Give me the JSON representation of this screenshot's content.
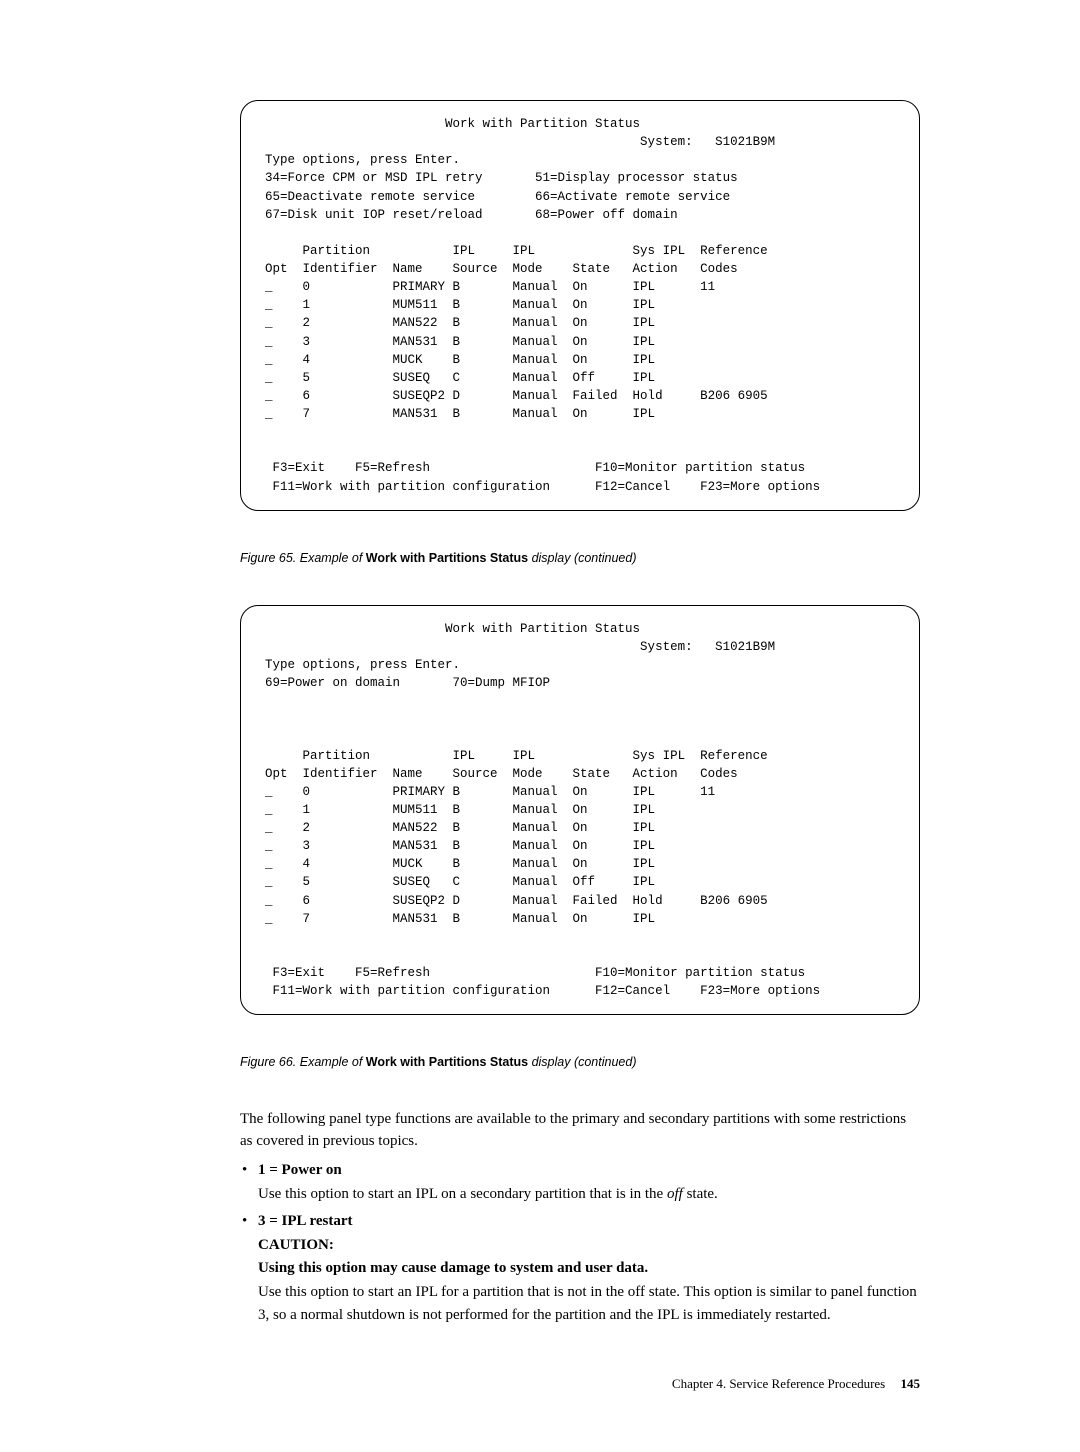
{
  "terminal_common": {
    "title": "Work with Partition Status",
    "system_label": "System:",
    "system_name": "S1021B9M",
    "type_options": "Type options, press Enter.",
    "cols": {
      "opt": "Opt",
      "partition_h1": "Partition",
      "identifier": "Identifier",
      "name": "Name",
      "ipl_h1": "IPL",
      "source": "Source",
      "ipl_h2": "IPL",
      "mode": "Mode",
      "state": "State",
      "sys_ipl": "Sys IPL",
      "action": "Action",
      "reference": "Reference",
      "codes": "Codes"
    },
    "rows": [
      {
        "opt": "_",
        "id": "0",
        "name": "PRIMARY",
        "src": "B",
        "mode": "Manual",
        "state": "On",
        "action": "IPL",
        "ref": "11"
      },
      {
        "opt": "_",
        "id": "1",
        "name": "MUM511",
        "src": "B",
        "mode": "Manual",
        "state": "On",
        "action": "IPL",
        "ref": ""
      },
      {
        "opt": "_",
        "id": "2",
        "name": "MAN522",
        "src": "B",
        "mode": "Manual",
        "state": "On",
        "action": "IPL",
        "ref": ""
      },
      {
        "opt": "_",
        "id": "3",
        "name": "MAN531",
        "src": "B",
        "mode": "Manual",
        "state": "On",
        "action": "IPL",
        "ref": ""
      },
      {
        "opt": "_",
        "id": "4",
        "name": "MUCK",
        "src": "B",
        "mode": "Manual",
        "state": "On",
        "action": "IPL",
        "ref": ""
      },
      {
        "opt": "_",
        "id": "5",
        "name": "SUSEQ",
        "src": "C",
        "mode": "Manual",
        "state": "Off",
        "action": "IPL",
        "ref": ""
      },
      {
        "opt": "_",
        "id": "6",
        "name": "SUSEQP2",
        "src": "D",
        "mode": "Manual",
        "state": "Failed",
        "action": "Hold",
        "ref": "B206 6905"
      },
      {
        "opt": "_",
        "id": "7",
        "name": "MAN531",
        "src": "B",
        "mode": "Manual",
        "state": "On",
        "action": "IPL",
        "ref": ""
      }
    ],
    "fkeys": {
      "f3": "F3=Exit",
      "f5": "F5=Refresh",
      "f10": "F10=Monitor partition status",
      "f11": "F11=Work with partition configuration",
      "f12": "F12=Cancel",
      "f23": "F23=More options"
    }
  },
  "terminal_a": {
    "opts": [
      "34=Force CPM or MSD IPL retry       51=Display processor status",
      "65=Deactivate remote service        66=Activate remote service",
      "67=Disk unit IOP reset/reload       68=Power off domain"
    ]
  },
  "terminal_b": {
    "opts": [
      "69=Power on domain       70=Dump MFIOP"
    ]
  },
  "fig_a": {
    "num": "Figure 65.",
    "pre": "Example of",
    "bold": "Work with Partitions Status",
    "post": "display (continued)"
  },
  "fig_b": {
    "num": "Figure 66.",
    "pre": "Example of",
    "bold": "Work with Partitions Status",
    "post": "display (continued)"
  },
  "body": {
    "intro": "The following panel type functions are available to the primary and secondary partitions with some restrictions as covered in previous topics.",
    "item1_title": "1 = Power on",
    "item1_body_pre": "Use this option to start an IPL on a secondary partition that is in the ",
    "item1_body_em": "off",
    "item1_body_post": " state.",
    "item3_title": "3 = IPL restart",
    "item3_caution": "CAUTION:",
    "item3_caution_line": "Using this option may cause damage to system and user data.",
    "item3_body": "Use this option to start an IPL for a partition that is not in the off state. This option is similar to panel function 3, so a normal shutdown is not performed for the partition and the IPL is immediately restarted."
  },
  "footer": {
    "chapter": "Chapter 4. Service Reference Procedures",
    "page": "145"
  }
}
